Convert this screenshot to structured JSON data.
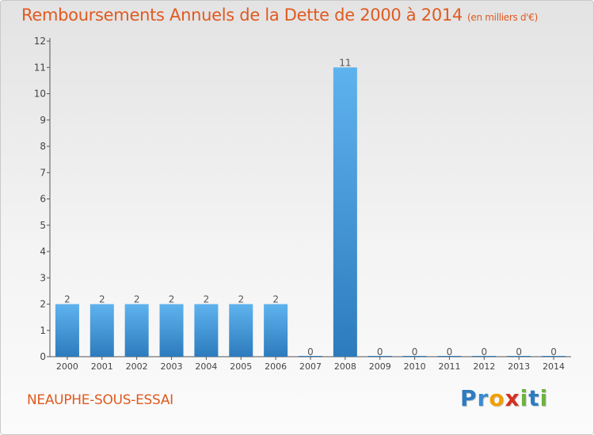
{
  "colors": {
    "accent": "#e05a20",
    "bar_light": "#5eb3ee",
    "bar_dark": "#2d7bbd",
    "axis": "#555555"
  },
  "logo": {
    "letters": [
      {
        "ch": "P",
        "color": "#2d7bc0"
      },
      {
        "ch": "r",
        "color": "#3a8ad0"
      },
      {
        "ch": "o",
        "color": "#f0a000"
      },
      {
        "ch": "x",
        "color": "#d63020"
      },
      {
        "ch": "i",
        "color": "#6db33f"
      },
      {
        "ch": "t",
        "color": "#2d7bc0"
      },
      {
        "ch": "i",
        "color": "#6db33f"
      }
    ]
  },
  "commune": "NEAUPHE-SOUS-ESSAI",
  "chart_data": {
    "type": "bar",
    "title": "Remboursements Annuels de la Dette de 2000 à 2014",
    "unit": "(en milliers d'€)",
    "categories": [
      "2000",
      "2001",
      "2002",
      "2003",
      "2004",
      "2005",
      "2006",
      "2007",
      "2008",
      "2009",
      "2010",
      "2011",
      "2012",
      "2013",
      "2014"
    ],
    "values": [
      2,
      2,
      2,
      2,
      2,
      2,
      2,
      0,
      11,
      0,
      0,
      0,
      0,
      0,
      0
    ],
    "ylim": [
      0,
      12
    ],
    "yticks": [
      0,
      1,
      2,
      3,
      4,
      5,
      6,
      7,
      8,
      9,
      10,
      11,
      12
    ],
    "grid": false,
    "xlabel": "",
    "ylabel": ""
  }
}
